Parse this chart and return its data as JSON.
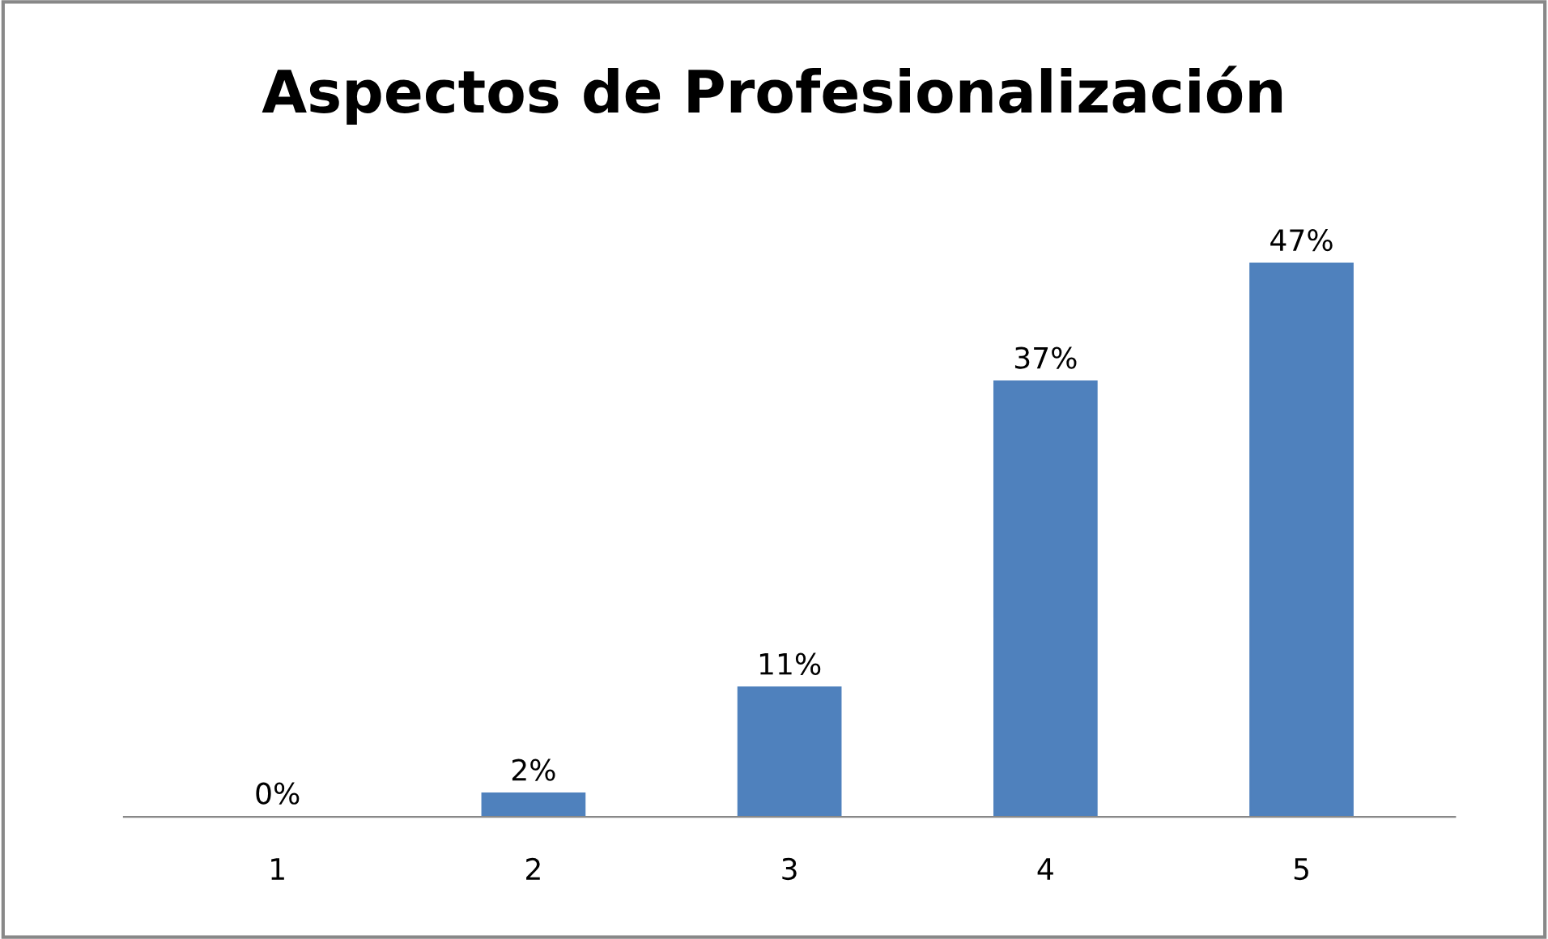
{
  "chart_data": {
    "type": "bar",
    "title": "Aspectos de Profesionalización",
    "categories": [
      "1",
      "2",
      "3",
      "4",
      "5"
    ],
    "values": [
      0,
      2,
      11,
      37,
      47
    ],
    "color": "#4f81bd",
    "value_labels": [
      "0%",
      "2%",
      "11%",
      "37%",
      "47%"
    ]
  }
}
